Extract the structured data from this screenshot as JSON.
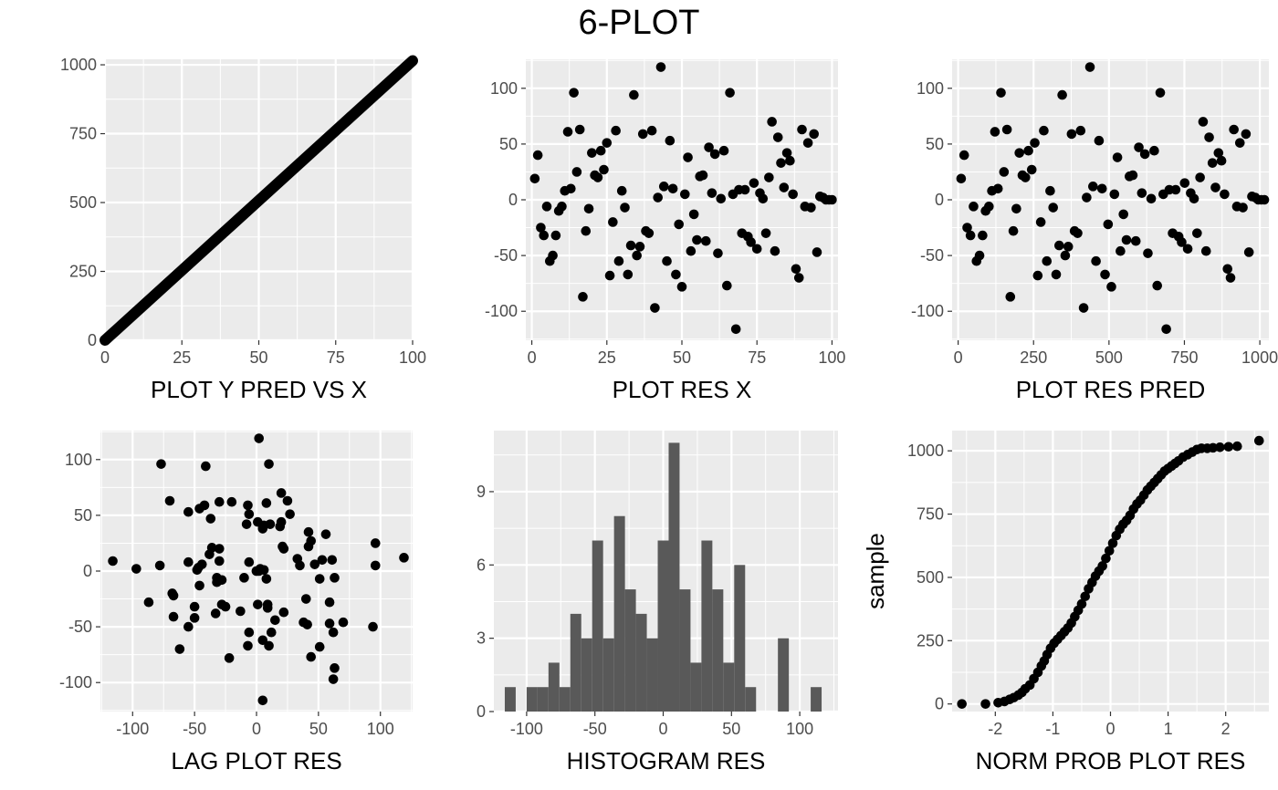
{
  "title": "6-PLOT",
  "chart_data": [
    {
      "type": "line",
      "xlabel": "PLOT Y PRED VS X",
      "ylabel": "",
      "xlim": [
        0,
        100
      ],
      "ylim": [
        0,
        1020
      ],
      "xticks": [
        0,
        25,
        50,
        75,
        100
      ],
      "yticks": [
        0,
        250,
        500,
        750,
        1000
      ],
      "grid": true,
      "series": [
        {
          "x": [
            0,
            100
          ],
          "y": [
            0,
            1015
          ]
        }
      ]
    },
    {
      "type": "scatter",
      "xlabel": "PLOT RES X",
      "ylabel": "",
      "xlim": [
        -2,
        102
      ],
      "ylim": [
        -126,
        126
      ],
      "xticks": [
        0,
        25,
        50,
        75,
        100
      ],
      "yticks": [
        -100,
        -50,
        0,
        50,
        100
      ],
      "grid": true,
      "x": [
        1,
        2,
        3,
        4,
        5,
        6,
        7,
        8,
        9,
        10,
        11,
        12,
        13,
        14,
        15,
        16,
        17,
        18,
        19,
        20,
        21,
        22,
        23,
        24,
        25,
        26,
        27,
        28,
        29,
        30,
        31,
        32,
        33,
        34,
        35,
        36,
        37,
        38,
        39,
        40,
        41,
        42,
        43,
        44,
        45,
        46,
        47,
        48,
        49,
        50,
        51,
        52,
        53,
        54,
        55,
        56,
        57,
        58,
        59,
        60,
        61,
        62,
        63,
        64,
        65,
        66,
        67,
        68,
        69,
        70,
        71,
        72,
        73,
        74,
        75,
        76,
        77,
        78,
        79,
        80,
        81,
        82,
        83,
        84,
        85,
        86,
        87,
        88,
        89,
        90,
        91,
        92,
        93,
        94,
        95,
        96,
        97,
        98,
        99,
        100
      ],
      "y": [
        19,
        40,
        -25,
        -32,
        -6,
        -55,
        -50,
        -32,
        -10,
        -6,
        8,
        61,
        10,
        96,
        25,
        63,
        -87,
        -28,
        -8,
        42,
        22,
        20,
        44,
        27,
        51,
        -68,
        -20,
        62,
        -55,
        8,
        -7,
        -67,
        -41,
        94,
        -50,
        -42,
        59,
        -28,
        -30,
        62,
        -97,
        2,
        119,
        12,
        -55,
        53,
        10,
        -67,
        -22,
        -78,
        5,
        38,
        -46,
        -13,
        -36,
        21,
        22,
        -37,
        47,
        6,
        41,
        -48,
        1,
        44,
        -77,
        96,
        5,
        -116,
        9,
        -30,
        9,
        -33,
        -38,
        15,
        -44,
        6,
        1,
        -30,
        20,
        70,
        -46,
        56,
        33,
        11,
        42,
        35,
        5,
        -62,
        -70,
        63,
        -6,
        51,
        -7,
        59,
        -47,
        3,
        2,
        0,
        0,
        0
      ]
    },
    {
      "type": "scatter",
      "xlabel": "PLOT RES PRED",
      "ylabel": "",
      "xlim": [
        -20,
        1030
      ],
      "ylim": [
        -126,
        126
      ],
      "xticks": [
        0,
        250,
        500,
        750,
        1000
      ],
      "yticks": [
        -100,
        -50,
        0,
        50,
        100
      ],
      "grid": true,
      "x": [
        10,
        20,
        30,
        41,
        51,
        61,
        71,
        81,
        91,
        102,
        112,
        122,
        132,
        142,
        152,
        162,
        173,
        183,
        193,
        203,
        213,
        223,
        233,
        244,
        254,
        264,
        274,
        284,
        294,
        305,
        315,
        325,
        335,
        345,
        355,
        365,
        376,
        386,
        396,
        406,
        416,
        426,
        437,
        447,
        457,
        467,
        477,
        487,
        497,
        508,
        518,
        528,
        538,
        548,
        558,
        568,
        579,
        589,
        599,
        609,
        619,
        629,
        640,
        650,
        660,
        670,
        680,
        690,
        700,
        711,
        721,
        731,
        741,
        751,
        761,
        771,
        782,
        792,
        802,
        812,
        822,
        832,
        843,
        853,
        863,
        873,
        883,
        893,
        903,
        914,
        924,
        934,
        944,
        954,
        964,
        974,
        985,
        995,
        1005,
        1015
      ],
      "y": [
        19,
        40,
        -25,
        -32,
        -6,
        -55,
        -50,
        -32,
        -10,
        -6,
        8,
        61,
        10,
        96,
        25,
        63,
        -87,
        -28,
        -8,
        42,
        22,
        20,
        44,
        27,
        51,
        -68,
        -20,
        62,
        -55,
        8,
        -7,
        -67,
        -41,
        94,
        -50,
        -42,
        59,
        -28,
        -30,
        62,
        -97,
        2,
        119,
        12,
        -55,
        53,
        10,
        -67,
        -22,
        -78,
        5,
        38,
        -46,
        -13,
        -36,
        21,
        22,
        -37,
        47,
        6,
        41,
        -48,
        1,
        44,
        -77,
        96,
        5,
        -116,
        9,
        -30,
        9,
        -33,
        -38,
        15,
        -44,
        6,
        1,
        -30,
        20,
        70,
        -46,
        56,
        33,
        11,
        42,
        35,
        5,
        -62,
        -70,
        63,
        -6,
        51,
        -7,
        59,
        -47,
        3,
        2,
        0,
        0,
        0
      ]
    },
    {
      "type": "scatter",
      "xlabel": "LAG PLOT RES",
      "ylabel": "",
      "xlim": [
        -126,
        126
      ],
      "ylim": [
        -126,
        126
      ],
      "xticks": [
        -100,
        -50,
        0,
        50,
        100
      ],
      "yticks": [
        -100,
        -50,
        0,
        50,
        100
      ],
      "grid": true,
      "x": [
        19,
        40,
        -25,
        -32,
        -6,
        -55,
        -50,
        -32,
        -10,
        -6,
        8,
        61,
        10,
        96,
        25,
        63,
        -87,
        -28,
        -8,
        42,
        22,
        20,
        44,
        27,
        51,
        -68,
        -20,
        62,
        -55,
        8,
        -7,
        -67,
        -41,
        94,
        -50,
        -42,
        59,
        -28,
        -30,
        62,
        -97,
        2,
        119,
        12,
        -55,
        53,
        10,
        -67,
        -22,
        -78,
        5,
        38,
        -46,
        -13,
        -36,
        21,
        22,
        -37,
        47,
        6,
        41,
        -48,
        1,
        44,
        -77,
        96,
        5,
        -116,
        9,
        -30,
        9,
        -33,
        -38,
        15,
        -44,
        6,
        1,
        -30,
        20,
        70,
        -46,
        56,
        33,
        11,
        42,
        35,
        5,
        -62,
        -70,
        63,
        -6,
        51,
        -7,
        59,
        -47,
        3,
        2,
        0,
        0
      ],
      "y": [
        40,
        -25,
        -32,
        -6,
        -55,
        -50,
        -32,
        -10,
        -6,
        8,
        61,
        10,
        96,
        25,
        63,
        -87,
        -28,
        -8,
        42,
        22,
        20,
        44,
        27,
        51,
        -68,
        -20,
        62,
        -55,
        8,
        -7,
        -67,
        -41,
        94,
        -50,
        -42,
        59,
        -28,
        -30,
        62,
        -97,
        2,
        119,
        12,
        -55,
        53,
        10,
        -67,
        -22,
        -78,
        5,
        38,
        -46,
        -13,
        -36,
        21,
        22,
        -37,
        47,
        6,
        41,
        -48,
        1,
        44,
        -77,
        96,
        5,
        -116,
        9,
        -30,
        9,
        -33,
        -38,
        15,
        -44,
        6,
        1,
        -30,
        20,
        70,
        -46,
        56,
        33,
        11,
        42,
        35,
        5,
        -62,
        -70,
        63,
        -6,
        51,
        -7,
        59,
        -47,
        3,
        2,
        0,
        0,
        0
      ]
    },
    {
      "type": "bar",
      "xlabel": "HISTOGRAM RES",
      "ylabel": "",
      "xlim": [
        -124,
        128
      ],
      "ylim": [
        0,
        11.5
      ],
      "xticks": [
        -100,
        -50,
        0,
        50,
        100
      ],
      "yticks": [
        0,
        3,
        6,
        9
      ],
      "grid": true,
      "bin_width": 8,
      "bin_centers": [
        -112,
        -104,
        -96,
        -88,
        -80,
        -72,
        -64,
        -56,
        -48,
        -40,
        -32,
        -24,
        -16,
        -8,
        0,
        8,
        16,
        24,
        32,
        40,
        48,
        56,
        64,
        72,
        80,
        88,
        96,
        104,
        112,
        120
      ],
      "counts": [
        1,
        0,
        1,
        1,
        2,
        1,
        4,
        3,
        7,
        3,
        8,
        5,
        4,
        3,
        7,
        11,
        5,
        2,
        7,
        5,
        2,
        6,
        1,
        0,
        0,
        3,
        0,
        0,
        1,
        0
      ]
    },
    {
      "type": "scatter",
      "xlabel": "NORM PROB PLOT RES",
      "ylabel": "sample",
      "xlim": [
        -2.75,
        2.75
      ],
      "ylim": [
        -30,
        1080
      ],
      "xticks": [
        -2,
        -1,
        0,
        1,
        2
      ],
      "yticks": [
        0,
        250,
        500,
        750,
        1000
      ],
      "grid": true,
      "x": [
        -2.58,
        -2.17,
        -1.95,
        -1.84,
        -1.75,
        -1.68,
        -1.6,
        -1.54,
        -1.48,
        -1.4,
        -1.33,
        -1.26,
        -1.2,
        -1.15,
        -1.1,
        -1.04,
        -0.98,
        -0.92,
        -0.86,
        -0.8,
        -0.74,
        -0.68,
        -0.62,
        -0.56,
        -0.5,
        -0.44,
        -0.38,
        -0.32,
        -0.26,
        -0.2,
        -0.14,
        -0.08,
        -0.02,
        0.04,
        0.1,
        0.16,
        0.22,
        0.28,
        0.34,
        0.4,
        0.46,
        0.52,
        0.58,
        0.64,
        0.7,
        0.76,
        0.82,
        0.88,
        0.94,
        1.0,
        1.06,
        1.12,
        1.18,
        1.26,
        1.34,
        1.42,
        1.5,
        1.58,
        1.68,
        1.78,
        1.9,
        2.05,
        2.2,
        2.58
      ],
      "y": [
        0,
        0,
        5,
        10,
        18,
        25,
        35,
        45,
        60,
        75,
        100,
        125,
        150,
        170,
        195,
        220,
        240,
        255,
        270,
        285,
        300,
        320,
        345,
        370,
        395,
        425,
        455,
        480,
        505,
        525,
        545,
        575,
        605,
        635,
        665,
        690,
        710,
        725,
        745,
        770,
        790,
        805,
        825,
        845,
        860,
        875,
        890,
        905,
        920,
        930,
        940,
        950,
        960,
        975,
        985,
        995,
        1005,
        1010,
        1010,
        1012,
        1014,
        1016,
        1018,
        1040
      ]
    }
  ]
}
